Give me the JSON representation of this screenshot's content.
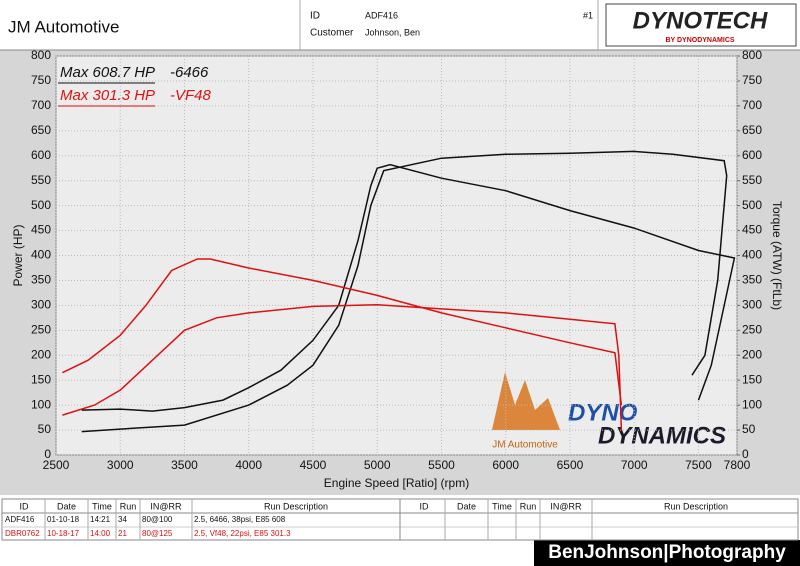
{
  "header": {
    "shop": "JM Automotive",
    "id_label": "ID",
    "id_value": "ADF416",
    "customer_label": "Customer",
    "customer_value": "Johnson, Ben",
    "page_number": "#1"
  },
  "logos": {
    "brand": "DYNOTECH",
    "brand_sub": "BY DYNODYNAMICS",
    "shop_logo": "JM Automotive",
    "dd_top": "DYNO",
    "dd_bottom": "DYNAMICS",
    "watermark": "BenJohnson|Photography"
  },
  "chart_data": {
    "type": "line",
    "x_label": "Engine Speed [Ratio] (rpm)",
    "y_label": "Power (HP)",
    "y2_label": "Torque (ATW) (FtLb)",
    "xlim": [
      2500,
      7800
    ],
    "xticks": [
      2500,
      3000,
      3500,
      4000,
      4500,
      5000,
      5500,
      6000,
      6500,
      7000,
      7500,
      7800
    ],
    "ylim": [
      0,
      800
    ],
    "yticks": [
      0,
      50,
      100,
      150,
      200,
      250,
      300,
      350,
      400,
      450,
      500,
      550,
      600,
      650,
      700,
      750,
      800
    ],
    "y2lim": [
      0,
      800
    ],
    "y2ticks": [
      0,
      50,
      100,
      150,
      200,
      250,
      300,
      350,
      400,
      450,
      500,
      550,
      600,
      650,
      700,
      750,
      800
    ],
    "grid": true,
    "runs": [
      {
        "name": "-6466",
        "max_label": "Max 608.7 HP",
        "color": "#111111",
        "power": {
          "x": [
            2700,
            3000,
            3500,
            4000,
            4300,
            4500,
            4700,
            4850,
            4950,
            5050,
            5500,
            6000,
            6500,
            7000,
            7300,
            7700,
            7720,
            7650,
            7550,
            7450
          ],
          "values": [
            47,
            52,
            60,
            100,
            140,
            180,
            260,
            380,
            500,
            570,
            595,
            603,
            605,
            608.7,
            603,
            590,
            560,
            350,
            200,
            160
          ]
        },
        "torque": {
          "axis": "y2",
          "x": [
            2700,
            3000,
            3250,
            3500,
            3800,
            4000,
            4250,
            4500,
            4700,
            4850,
            4950,
            5000,
            5100,
            5500,
            6000,
            6500,
            7000,
            7500,
            7780,
            7700,
            7600,
            7500
          ],
          "values": [
            90,
            92,
            88,
            95,
            110,
            135,
            170,
            230,
            300,
            430,
            540,
            575,
            582,
            555,
            530,
            490,
            455,
            410,
            395,
            300,
            180,
            110
          ]
        }
      },
      {
        "name": "-VF48",
        "max_label": "Max 301.3 HP",
        "color": "#dd1111",
        "power": {
          "x": [
            2550,
            2800,
            3000,
            3250,
            3500,
            3750,
            4000,
            4500,
            5000,
            5500,
            6000,
            6500,
            6850,
            6880,
            6900
          ],
          "values": [
            80,
            100,
            130,
            190,
            250,
            275,
            285,
            298,
            301.3,
            293,
            285,
            272,
            263,
            200,
            50
          ]
        },
        "torque": {
          "axis": "y2",
          "x": [
            2550,
            2750,
            3000,
            3200,
            3400,
            3600,
            3700,
            4000,
            4500,
            5000,
            5500,
            6000,
            6500,
            6850,
            6900
          ],
          "values": [
            165,
            190,
            240,
            300,
            370,
            393,
            393,
            375,
            350,
            320,
            285,
            255,
            225,
            205,
            100
          ]
        }
      }
    ]
  },
  "table": {
    "headers": [
      "ID",
      "Date",
      "Time",
      "Run",
      "IN@RR",
      "Run Description",
      "ID",
      "Date",
      "Time",
      "Run",
      "IN@RR",
      "Run Description"
    ],
    "rows": [
      {
        "color": "#111111",
        "cells": [
          "ADF416",
          "01-10-18",
          "14:21",
          "34",
          "80@100",
          "2.5, 6466, 38psi, E85 608"
        ]
      },
      {
        "color": "#dd1111",
        "cells": [
          "DBR0762",
          "10-18-17",
          "14:00",
          "21",
          "80@125",
          "2.5, Vf48, 22psi, E85 301.3"
        ]
      }
    ]
  }
}
